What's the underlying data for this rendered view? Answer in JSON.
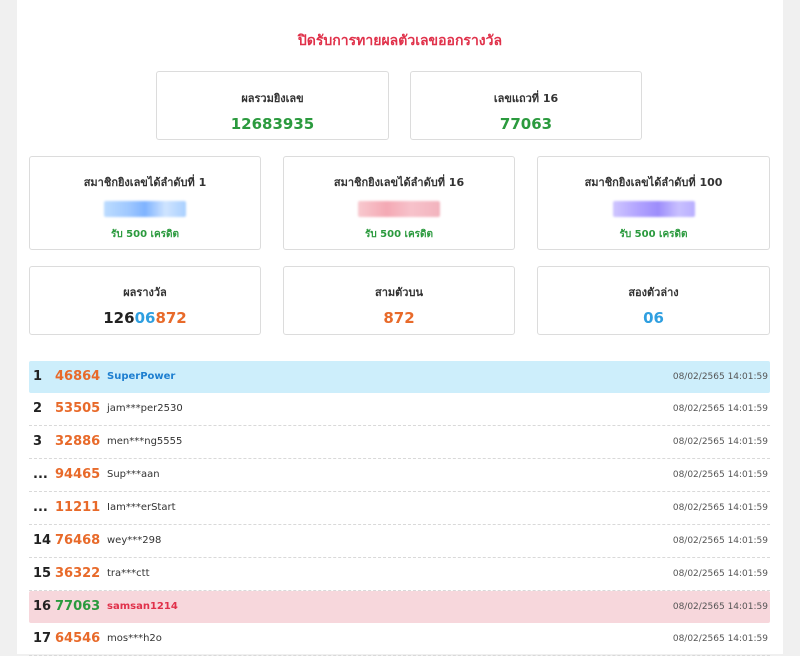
{
  "header": {
    "title": "ปิดรับการทายผลตัวเลขออกรางวัล"
  },
  "summary": {
    "total_label": "ผลรวมยิงเลข",
    "total_value": "12683935",
    "row16_label": "เลขแถวที่ 16",
    "row16_value": "77063"
  },
  "members": [
    {
      "label": "สมาชิกยิงเลขได้ลำดับที่ 1",
      "credit": "รับ 500 เครดิต",
      "blur_color": "#9fc8ff"
    },
    {
      "label": "สมาชิกยิงเลขได้ลำดับที่ 16",
      "credit": "รับ 500 เครดิต",
      "blur_color": "#f4a9b4"
    },
    {
      "label": "สมาชิกยิงเลขได้ลำดับที่ 100",
      "credit": "รับ 500 เครดิต",
      "blur_color": "#b2a4ff"
    }
  ],
  "results": {
    "prize_label": "ผลรางวัล",
    "prize_part1": "126",
    "prize_part2": "06",
    "prize_part3": "872",
    "top3_label": "สามตัวบน",
    "top3_value": "872",
    "bottom2_label": "สองตัวล่าง",
    "bottom2_value": "06"
  },
  "rows": [
    {
      "rank": "1",
      "number": "46864",
      "user": "SuperPower",
      "time": "08/02/2565 14:01:59"
    },
    {
      "rank": "2",
      "number": "53505",
      "user": "jam***per2530",
      "time": "08/02/2565 14:01:59"
    },
    {
      "rank": "3",
      "number": "32886",
      "user": "men***ng5555",
      "time": "08/02/2565 14:01:59"
    },
    {
      "rank": "...",
      "number": "94465",
      "user": "Sup***aan",
      "time": "08/02/2565 14:01:59"
    },
    {
      "rank": "...",
      "number": "11211",
      "user": "Iam***erStart",
      "time": "08/02/2565 14:01:59"
    },
    {
      "rank": "14",
      "number": "76468",
      "user": "wey***298",
      "time": "08/02/2565 14:01:59"
    },
    {
      "rank": "15",
      "number": "36322",
      "user": "tra***ctt",
      "time": "08/02/2565 14:01:59"
    },
    {
      "rank": "16",
      "number": "77063",
      "user": "samsan1214",
      "time": "08/02/2565 14:01:59"
    },
    {
      "rank": "17",
      "number": "64546",
      "user": "mos***h2o",
      "time": "08/02/2565 14:01:59"
    }
  ],
  "colors": {
    "accent_red": "#e0314a",
    "green": "#2b9a3e",
    "orange": "#e86a2a",
    "blue": "#2f9fe0"
  }
}
